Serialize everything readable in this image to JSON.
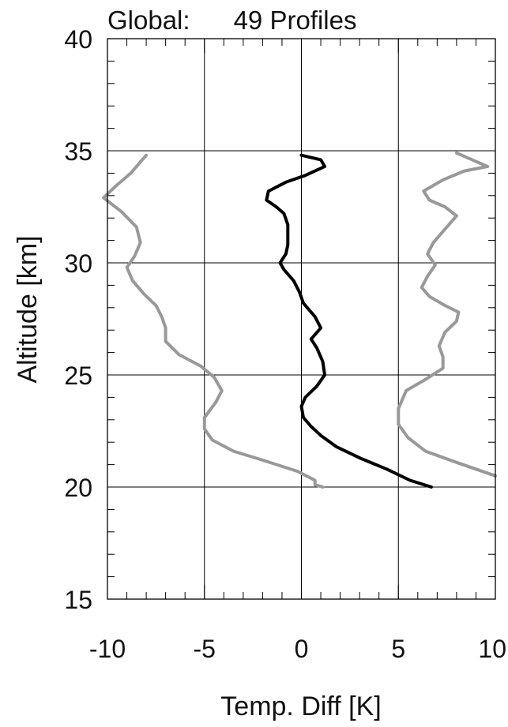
{
  "chart_data": {
    "type": "line",
    "title": "Global:      49 Profiles",
    "xlabel": "Temp. Diff [K]",
    "ylabel": "Altitude [km]",
    "xlim": [
      -10,
      10
    ],
    "ylim": [
      15,
      40
    ],
    "xticks": [
      -10,
      -5,
      0,
      5,
      10
    ],
    "yticks": [
      15,
      20,
      25,
      30,
      35,
      40
    ],
    "xtick_labels": [
      "-10",
      "-5",
      "0",
      "5",
      "10"
    ],
    "ytick_labels": [
      "15",
      "20",
      "25",
      "30",
      "35",
      "40"
    ],
    "grid": true,
    "grid_x": [
      -5,
      0,
      5
    ],
    "grid_y": [
      20,
      25,
      30,
      35
    ],
    "colors": {
      "mean": "#000000",
      "spread": "#999999",
      "grid": "#000000"
    },
    "series": [
      {
        "role": "mean",
        "x": [
          6.7,
          5.6,
          4.4,
          3.0,
          1.8,
          1.0,
          0.5,
          0.1,
          0.0,
          0.2,
          0.8,
          1.2,
          1.1,
          0.8,
          0.5,
          1.0,
          0.7,
          0.1,
          -0.1,
          -0.4,
          -0.9,
          -1.1,
          -0.8,
          -0.7,
          -0.7,
          -0.7,
          -0.9,
          -1.3,
          -1.8,
          -1.7,
          -0.8,
          0.2,
          1.2,
          1.0,
          0.0
        ],
        "y": [
          20.0,
          20.3,
          20.8,
          21.3,
          21.8,
          22.3,
          22.7,
          23.1,
          23.6,
          24.0,
          24.5,
          25.0,
          25.6,
          26.2,
          26.6,
          27.1,
          27.6,
          28.2,
          28.7,
          29.2,
          29.7,
          30.0,
          30.4,
          30.8,
          31.2,
          31.7,
          32.2,
          32.5,
          32.8,
          33.2,
          33.6,
          33.9,
          34.3,
          34.6,
          34.8
        ]
      },
      {
        "role": "lower",
        "x": [
          1.1,
          0.7,
          0.7,
          -0.2,
          -2.0,
          -3.5,
          -4.6,
          -5.0,
          -5.0,
          -4.4,
          -4.1,
          -4.5,
          -5.2,
          -6.3,
          -7.0,
          -7.0,
          -7.2,
          -7.5,
          -8.1,
          -8.7,
          -9.0,
          -8.6,
          -8.3,
          -8.5,
          -9.3,
          -10.2,
          -9.6,
          -8.8,
          -8.3,
          -8.0
        ],
        "y": [
          20.0,
          20.1,
          20.3,
          20.7,
          21.2,
          21.6,
          22.1,
          22.6,
          23.1,
          23.8,
          24.3,
          24.9,
          25.4,
          25.9,
          26.5,
          27.1,
          27.6,
          28.1,
          28.6,
          29.2,
          29.8,
          30.3,
          30.9,
          31.6,
          32.3,
          32.9,
          33.4,
          34.0,
          34.5,
          34.8
        ]
      },
      {
        "role": "upper",
        "x": [
          10.0,
          8.0,
          6.4,
          5.5,
          5.0,
          5.0,
          5.4,
          6.4,
          7.3,
          7.3,
          7.1,
          7.4,
          8.0,
          8.1,
          7.4,
          6.6,
          6.2,
          6.5,
          6.9,
          6.5,
          6.8,
          7.3,
          8.0,
          7.4,
          6.6,
          6.3,
          7.3,
          8.4,
          9.6,
          8.0
        ],
        "y": [
          20.5,
          21.1,
          21.6,
          22.2,
          22.8,
          23.5,
          24.3,
          24.8,
          25.3,
          25.8,
          26.3,
          26.9,
          27.4,
          27.8,
          28.1,
          28.5,
          28.9,
          29.4,
          29.9,
          30.4,
          30.9,
          31.4,
          32.1,
          32.5,
          32.8,
          33.2,
          33.7,
          34.1,
          34.3,
          34.9
        ]
      }
    ]
  }
}
